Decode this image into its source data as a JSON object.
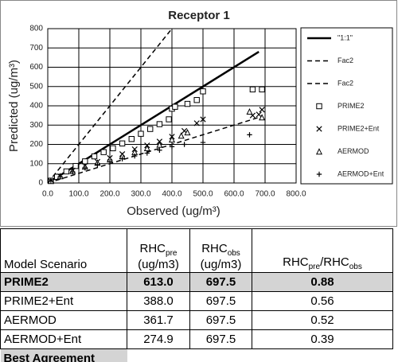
{
  "chart_data": {
    "type": "scatter",
    "title": "Receptor 1",
    "x_label": "Observed (ug/m³)",
    "y_label": "Predicted (ug/m³)",
    "xlim": [
      0,
      800
    ],
    "ylim": [
      0,
      800
    ],
    "xticks": [
      {
        "value": 0,
        "label": "0.0"
      },
      {
        "value": 100,
        "label": "100.0"
      },
      {
        "value": 200,
        "label": "200.0"
      },
      {
        "value": 300,
        "label": "300.0"
      },
      {
        "value": 400,
        "label": "400.0"
      },
      {
        "value": 500,
        "label": "500.0"
      },
      {
        "value": 600,
        "label": "600.0"
      },
      {
        "value": 700,
        "label": "700.0"
      },
      {
        "value": 800,
        "label": "800.0"
      }
    ],
    "yticks": [
      0,
      100,
      200,
      300,
      400,
      500,
      600,
      700,
      800
    ],
    "grid": true,
    "legend": "right",
    "series": [
      {
        "name": "\"1:1\"",
        "color": "#000000",
        "style": "solid",
        "x": [
          0,
          680
        ],
        "values": [
          0,
          680
        ]
      },
      {
        "name": "Fac2",
        "color": "#000000",
        "style": "dashed",
        "x": [
          0,
          400
        ],
        "values": [
          0,
          800
        ]
      },
      {
        "name": "Fac2",
        "color": "#000000",
        "style": "dashed",
        "x": [
          0,
          680
        ],
        "values": [
          0,
          340
        ]
      },
      {
        "name": "PRIME2",
        "color": "#000000",
        "marker": "square",
        "x": [
          10,
          30,
          60,
          90,
          120,
          150,
          180,
          210,
          240,
          270,
          300,
          330,
          360,
          390,
          400,
          410,
          450,
          480,
          500,
          660,
          690
        ],
        "values": [
          12,
          32,
          60,
          88,
          112,
          138,
          160,
          180,
          205,
          228,
          255,
          280,
          305,
          330,
          385,
          395,
          410,
          430,
          475,
          485,
          485
        ]
      },
      {
        "name": "PRIME2+Ent",
        "color": "#000000",
        "marker": "cross",
        "x": [
          10,
          40,
          80,
          120,
          160,
          200,
          240,
          280,
          320,
          360,
          400,
          440,
          480,
          500,
          660,
          680,
          690
        ],
        "values": [
          10,
          35,
          65,
          90,
          110,
          130,
          150,
          175,
          195,
          215,
          240,
          270,
          310,
          330,
          350,
          355,
          380
        ]
      },
      {
        "name": "AERMOD",
        "color": "#000000",
        "marker": "triangle",
        "x": [
          10,
          40,
          80,
          120,
          160,
          200,
          240,
          280,
          320,
          360,
          400,
          430,
          450,
          650,
          690
        ],
        "values": [
          10,
          35,
          62,
          85,
          105,
          122,
          140,
          160,
          180,
          198,
          225,
          245,
          262,
          370,
          340
        ]
      },
      {
        "name": "AERMOD+Ent",
        "color": "#000000",
        "marker": "plus",
        "x": [
          10,
          40,
          80,
          120,
          160,
          200,
          240,
          280,
          320,
          360,
          400,
          440,
          500,
          650
        ],
        "values": [
          10,
          32,
          58,
          78,
          95,
          110,
          125,
          140,
          155,
          170,
          188,
          200,
          210,
          250
        ]
      }
    ]
  },
  "table": {
    "header": {
      "scenario": "Model Scenario",
      "pre": {
        "main": "RHC",
        "sub": "pre",
        "unit": "(ug/m3)"
      },
      "obs": {
        "main": "RHC",
        "sub": "obs",
        "unit": "(ug/m3)"
      },
      "ratio": {
        "main1": "RHC",
        "sub1": "pre",
        "main2": "/RHC",
        "sub2": "obs"
      }
    },
    "rows": [
      [
        "PRIME2",
        "613.0",
        "697.5",
        "0.88"
      ],
      [
        "PRIME2+Ent",
        "388.0",
        "697.5",
        "0.56"
      ],
      [
        "AERMOD",
        "361.7",
        "697.5",
        "0.52"
      ],
      [
        "AERMOD+Ent",
        "274.9",
        "697.5",
        "0.39"
      ]
    ],
    "highlight_row": 0,
    "footer": "Best Agreement"
  }
}
